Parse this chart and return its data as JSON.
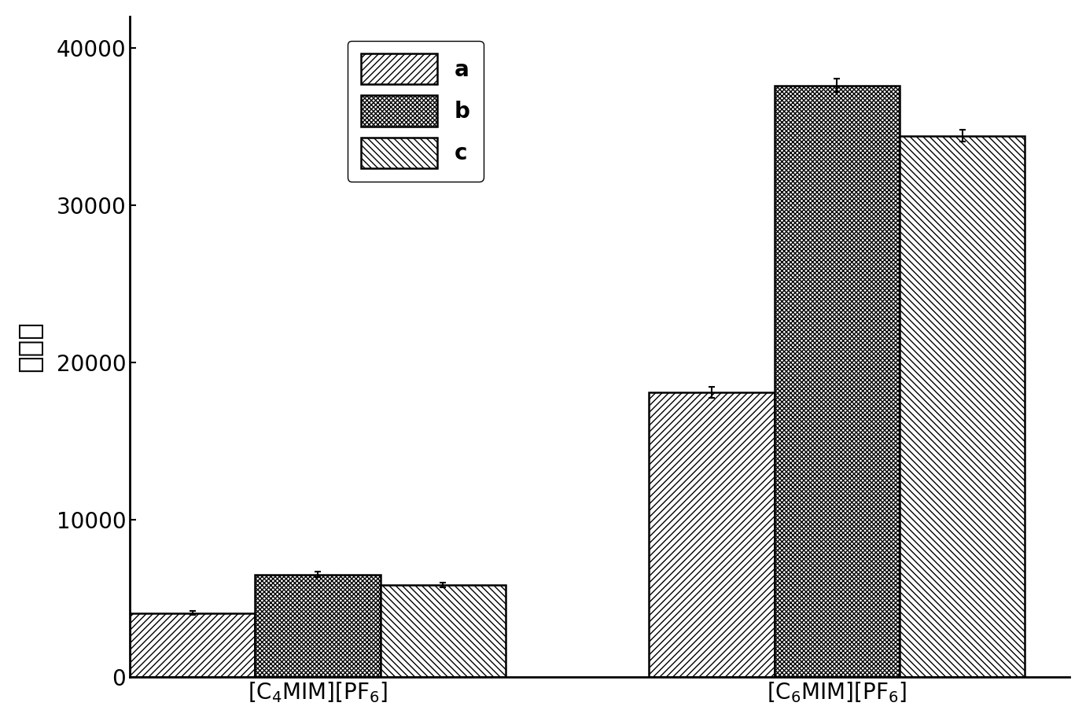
{
  "groups": [
    "[C$_4$MIM][PF$_6$]",
    "[C$_6$MIM][PF$_6$]"
  ],
  "series_labels": [
    "a",
    "b",
    "c"
  ],
  "values": [
    [
      4050,
      6500,
      5850
    ],
    [
      18100,
      37600,
      34400
    ]
  ],
  "errors": [
    [
      130,
      180,
      150
    ],
    [
      350,
      420,
      380
    ]
  ],
  "hatches": [
    "/",
    "x",
    "\\\\"
  ],
  "hatch_densities": [
    4,
    6,
    4
  ],
  "bar_facecolor": "white",
  "bar_edgecolor": "black",
  "ylabel": "峰面积",
  "ylim": [
    0,
    42000
  ],
  "yticks": [
    0,
    10000,
    20000,
    30000,
    40000
  ],
  "bar_width": 0.28,
  "group_positions": [
    0.42,
    1.58
  ],
  "legend_fontsize": 20,
  "tick_fontsize": 20,
  "ylabel_fontsize": 26,
  "xlabel_fontsize": 20,
  "background_color": "white",
  "linewidth": 1.8,
  "spine_linewidth": 2.0
}
